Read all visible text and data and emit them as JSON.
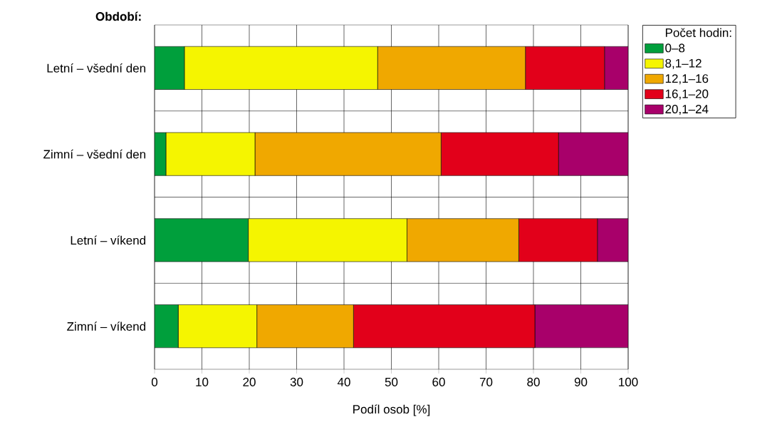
{
  "chart_data": {
    "type": "bar",
    "orientation": "horizontal",
    "stacked": true,
    "ylabel": "Období:",
    "xlabel": "Podíl osob [%]",
    "legend_title": "Počet hodin:",
    "categories": [
      "Letní – všední den",
      "Zimní – všední den",
      "Letní – víkend",
      "Zimní – víkend"
    ],
    "series": [
      {
        "name": "0–8",
        "color": "#009f3c",
        "values": [
          6.3,
          2.4,
          19.8,
          5.0
        ]
      },
      {
        "name": "8,1–12",
        "color": "#f5f500",
        "values": [
          40.8,
          18.8,
          33.5,
          16.6
        ]
      },
      {
        "name": "12,1–16",
        "color": "#f0a800",
        "values": [
          31.2,
          39.3,
          23.6,
          20.4
        ]
      },
      {
        "name": "16,1–20",
        "color": "#e2001a",
        "values": [
          16.7,
          24.8,
          16.6,
          38.3
        ]
      },
      {
        "name": "20,1–24",
        "color": "#a8006a",
        "values": [
          5.0,
          14.7,
          6.5,
          19.7
        ]
      }
    ],
    "xlim": [
      0,
      100
    ],
    "xticks": [
      0,
      10,
      20,
      30,
      40,
      50,
      60,
      70,
      80,
      90,
      100
    ],
    "grid": true,
    "legend": "right"
  }
}
